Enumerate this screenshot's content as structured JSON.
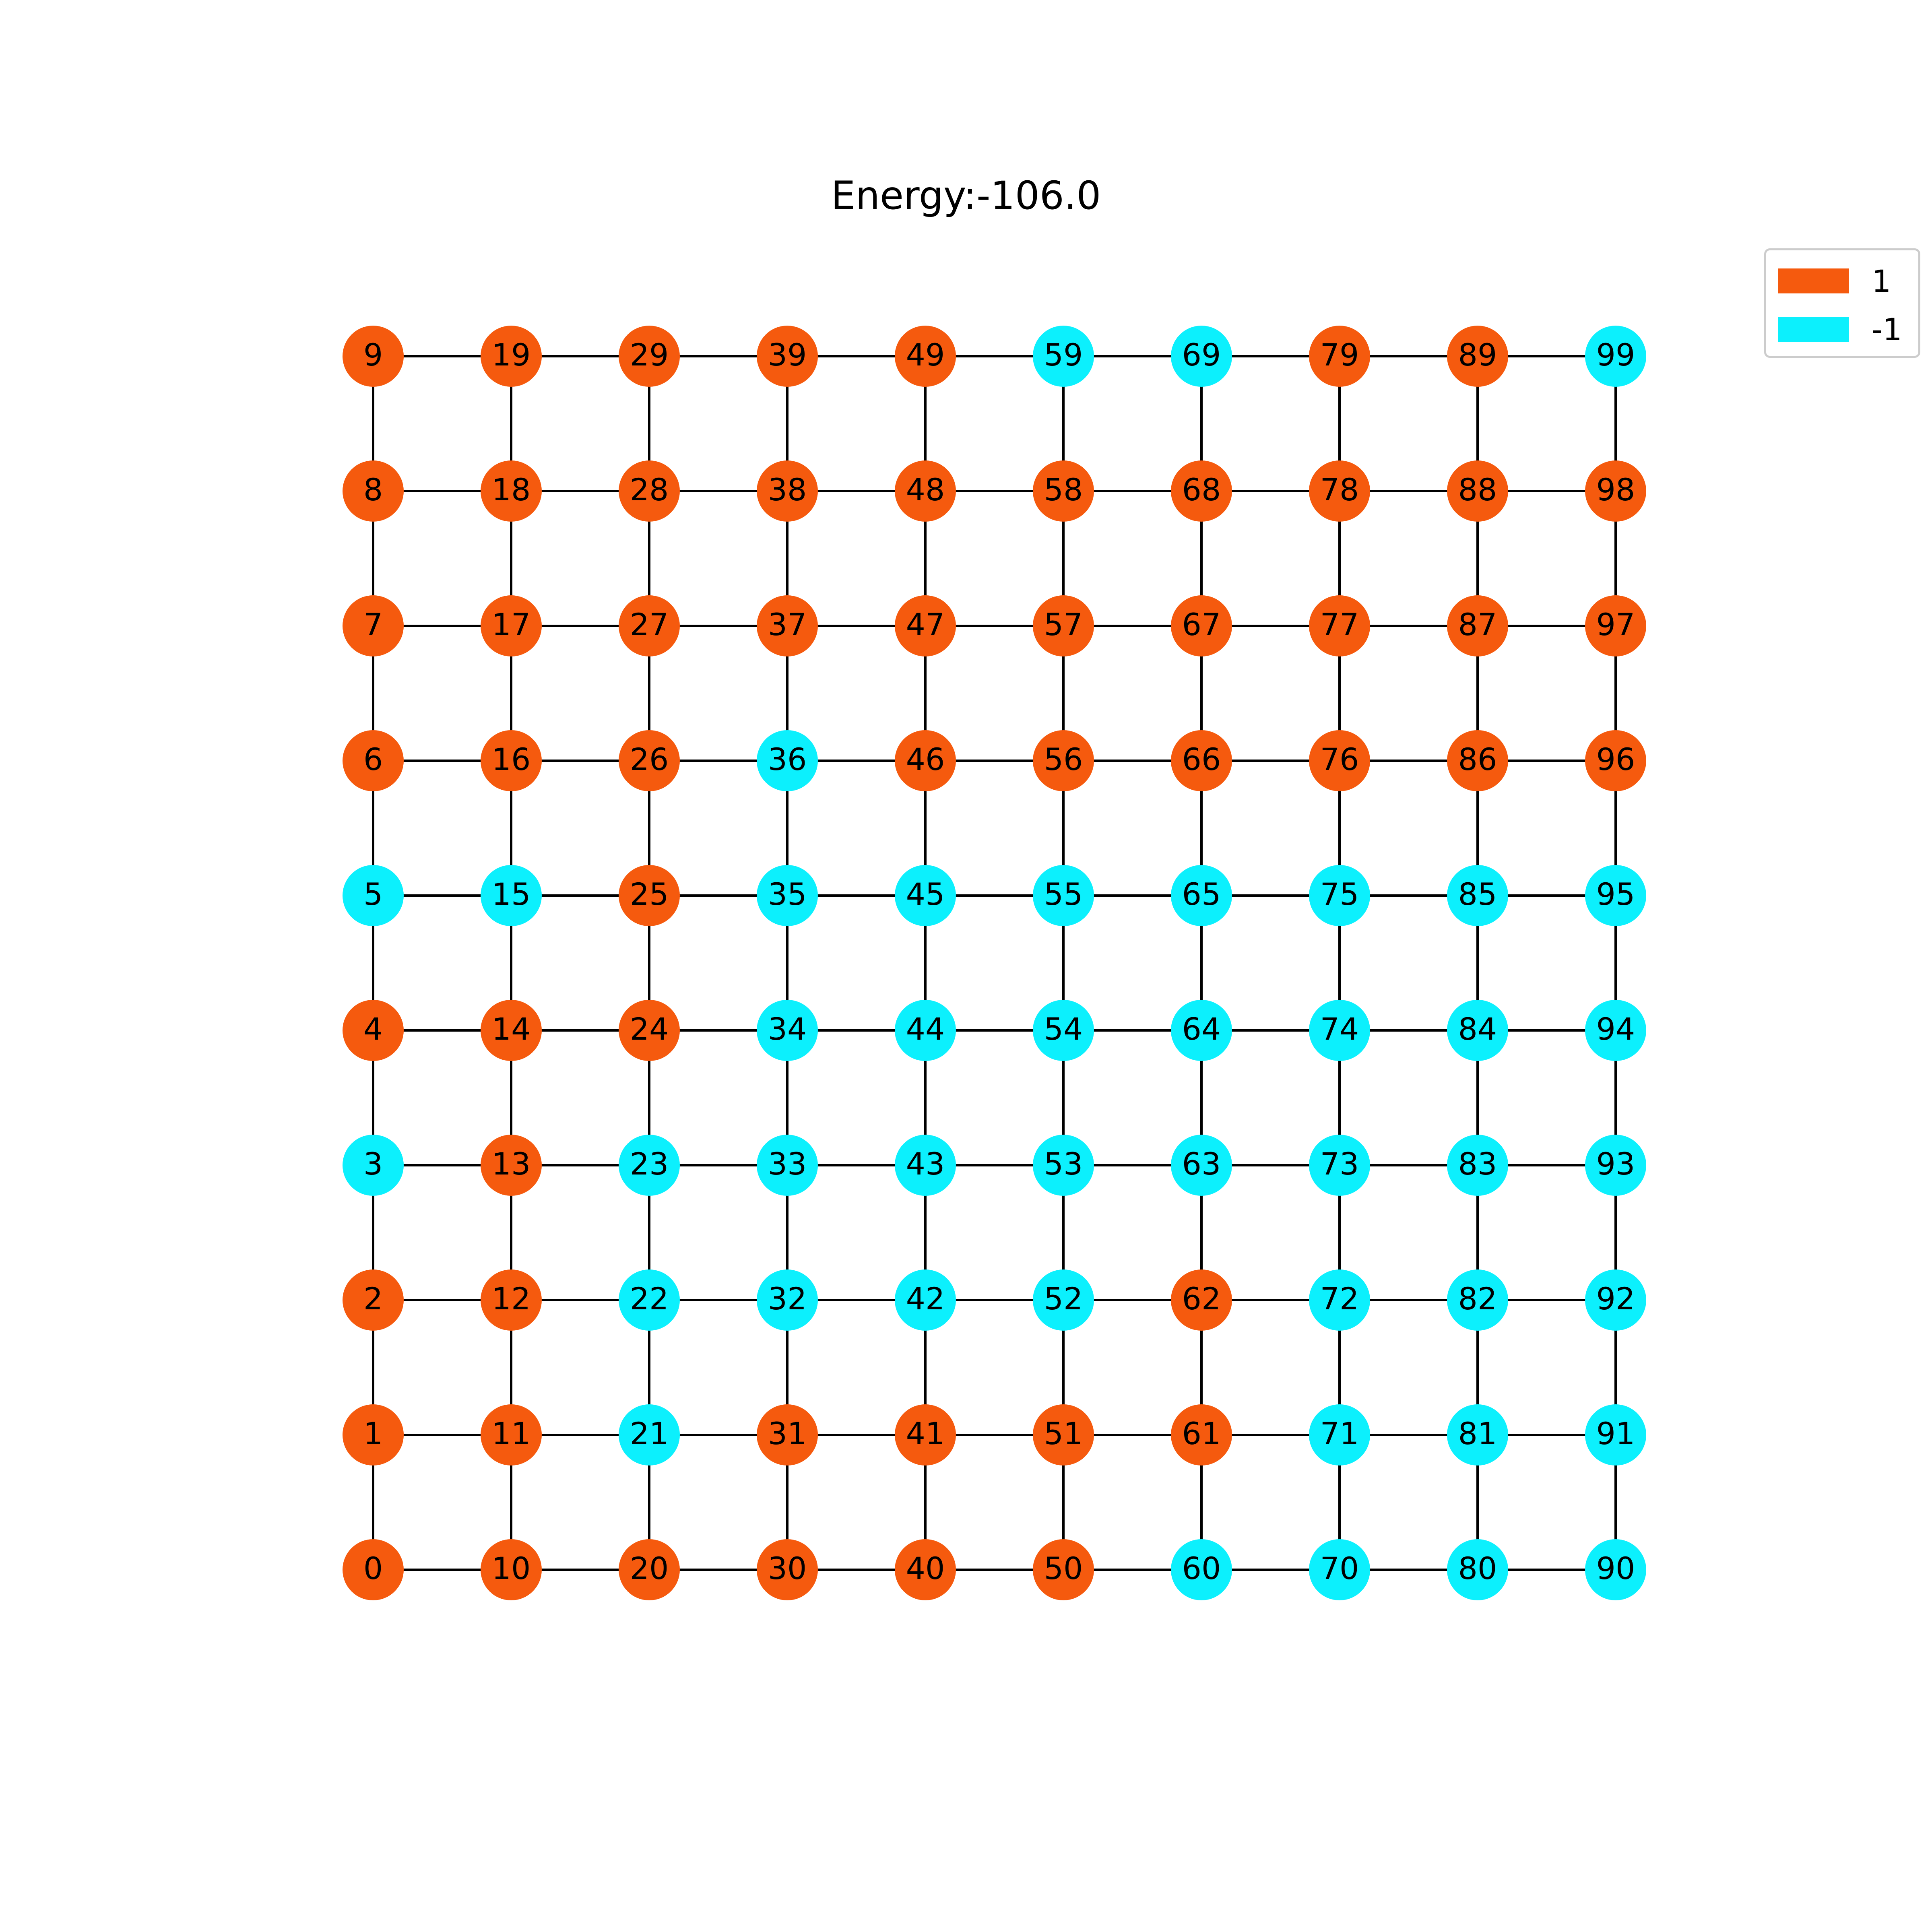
{
  "title": "Energy:-106.0",
  "legend": [
    {
      "label": "1",
      "value": 1
    },
    {
      "label": "-1",
      "value": -1
    }
  ],
  "colors": {
    "1": "#f55a0e",
    "-1": "#0cf0fd",
    "edge": "#000000",
    "label": "#000000"
  },
  "grid": {
    "columns": 10,
    "rows": 10
  },
  "spins": [
    [
      1,
      1,
      1,
      -1,
      1,
      -1,
      1,
      1,
      1,
      1
    ],
    [
      1,
      1,
      1,
      1,
      1,
      -1,
      1,
      1,
      1,
      1
    ],
    [
      1,
      -1,
      -1,
      -1,
      1,
      1,
      1,
      1,
      1,
      1
    ],
    [
      1,
      1,
      -1,
      -1,
      -1,
      -1,
      -1,
      1,
      1,
      1
    ],
    [
      1,
      1,
      -1,
      -1,
      -1,
      -1,
      1,
      1,
      1,
      1
    ],
    [
      1,
      1,
      -1,
      -1,
      -1,
      -1,
      1,
      1,
      1,
      -1
    ],
    [
      -1,
      1,
      1,
      -1,
      -1,
      -1,
      1,
      1,
      1,
      -1
    ],
    [
      -1,
      -1,
      -1,
      -1,
      -1,
      -1,
      1,
      1,
      1,
      1
    ],
    [
      -1,
      -1,
      -1,
      -1,
      -1,
      -1,
      1,
      1,
      1,
      1
    ],
    [
      -1,
      -1,
      -1,
      -1,
      -1,
      -1,
      1,
      1,
      1,
      -1
    ]
  ]
}
